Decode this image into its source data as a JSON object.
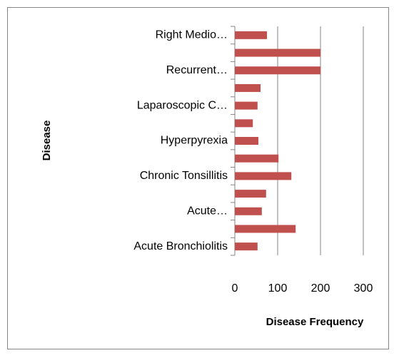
{
  "chart_data": {
    "type": "bar",
    "orientation": "horizontal",
    "categories": [
      "Acute Bronchiolitis",
      null,
      "Acute…",
      null,
      "Chronic Tonsillitis",
      null,
      "Hyperpyrexia",
      null,
      "Laparoscopic C…",
      null,
      "Recurrent…",
      null,
      "Right Medio…"
    ],
    "values": [
      53,
      142,
      63,
      73,
      132,
      102,
      55,
      42,
      53,
      60,
      200,
      200,
      75
    ],
    "color": "#c0504d",
    "xlabel": "Disease Frequency",
    "ylabel": "Disease",
    "xlim": [
      0,
      300
    ],
    "xticks": [
      0,
      100,
      200,
      300
    ],
    "grid": true
  }
}
